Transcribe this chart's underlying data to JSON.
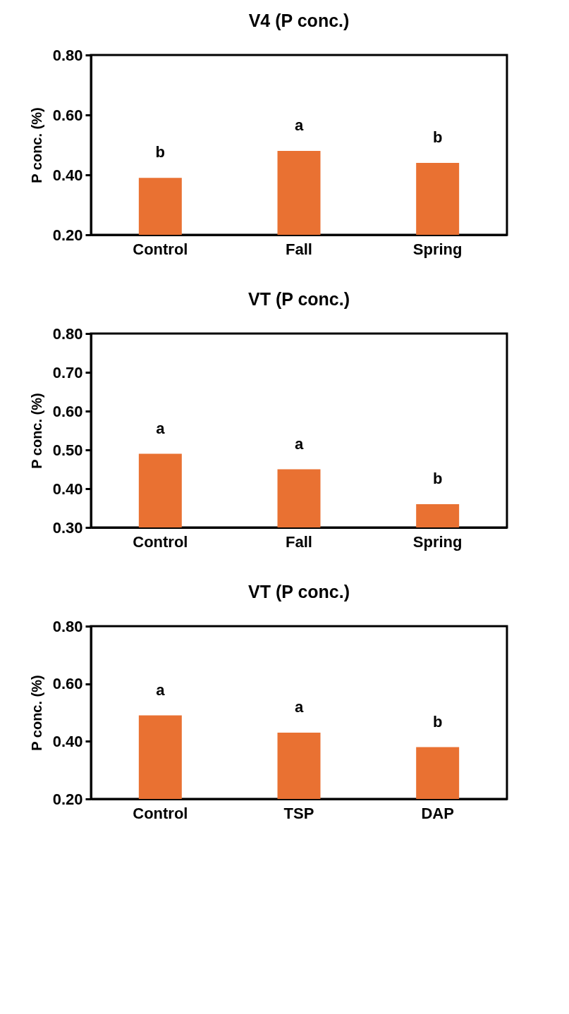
{
  "chart_data": [
    {
      "type": "bar",
      "title": "V4 (P conc.)",
      "ylabel": "P conc. (%)",
      "categories": [
        "Control",
        "Fall",
        "Spring"
      ],
      "values": [
        0.39,
        0.48,
        0.44
      ],
      "color": "#e97132",
      "ylim": [
        0.2,
        0.8
      ],
      "yticks": [
        {
          "value": 0.2,
          "label": "0.20"
        },
        {
          "value": 0.4,
          "label": "0.40"
        },
        {
          "value": 0.6,
          "label": "0.60"
        },
        {
          "value": 0.8,
          "label": "0.80"
        }
      ],
      "annotations": [
        {
          "text": "b",
          "x": "Control",
          "y": 0.39
        },
        {
          "text": "a",
          "x": "Fall",
          "y": 0.48
        },
        {
          "text": "b",
          "x": "Spring",
          "y": 0.44
        }
      ]
    },
    {
      "type": "bar",
      "title": "VT (P conc.)",
      "ylabel": "P conc. (%)",
      "categories": [
        "Control",
        "Fall",
        "Spring"
      ],
      "values": [
        0.49,
        0.45,
        0.36
      ],
      "color": "#e97132",
      "ylim": [
        0.3,
        0.8
      ],
      "yticks": [
        {
          "value": 0.3,
          "label": "0.30"
        },
        {
          "value": 0.4,
          "label": "0.40"
        },
        {
          "value": 0.5,
          "label": "0.50"
        },
        {
          "value": 0.6,
          "label": "0.60"
        },
        {
          "value": 0.7,
          "label": "0.70"
        },
        {
          "value": 0.8,
          "label": "0.80"
        }
      ],
      "annotations": [
        {
          "text": "a",
          "x": "Control",
          "y": 0.49
        },
        {
          "text": "a",
          "x": "Fall",
          "y": 0.45
        },
        {
          "text": "b",
          "x": "Spring",
          "y": 0.36
        }
      ]
    },
    {
      "type": "bar",
      "title": "VT (P conc.)",
      "ylabel": "P conc. (%)",
      "categories": [
        "Control",
        "TSP",
        "DAP"
      ],
      "values": [
        0.49,
        0.43,
        0.38
      ],
      "color": "#e97132",
      "ylim": [
        0.2,
        0.8
      ],
      "yticks": [
        {
          "value": 0.2,
          "label": "0.20"
        },
        {
          "value": 0.4,
          "label": "0.40"
        },
        {
          "value": 0.6,
          "label": "0.60"
        },
        {
          "value": 0.8,
          "label": "0.80"
        }
      ],
      "annotations": [
        {
          "text": "a",
          "x": "Control",
          "y": 0.49
        },
        {
          "text": "a",
          "x": "TSP",
          "y": 0.43
        },
        {
          "text": "b",
          "x": "DAP",
          "y": 0.38
        }
      ]
    }
  ]
}
